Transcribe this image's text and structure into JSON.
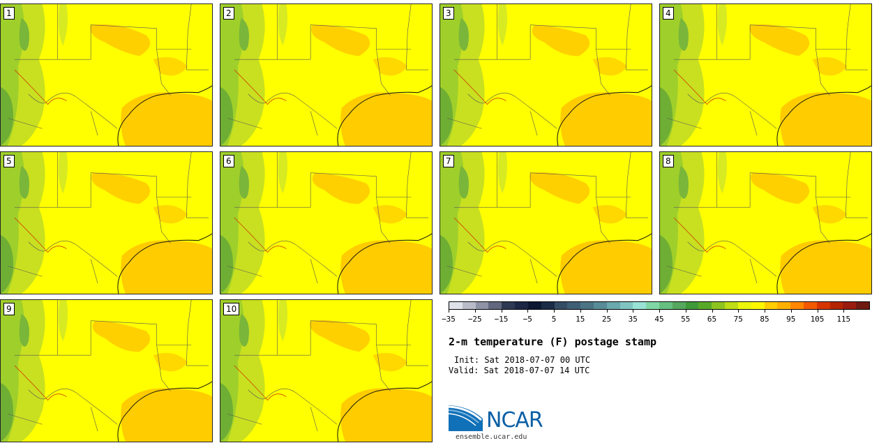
{
  "panels": [
    {
      "label": "1"
    },
    {
      "label": "2"
    },
    {
      "label": "3"
    },
    {
      "label": "4"
    },
    {
      "label": "5"
    },
    {
      "label": "6"
    },
    {
      "label": "7"
    },
    {
      "label": "8"
    },
    {
      "label": "9"
    },
    {
      "label": "10"
    }
  ],
  "colorbar": {
    "colors": [
      "#dfe1ea",
      "#b9bcc8",
      "#8e93a6",
      "#62687f",
      "#2d3852",
      "#1b2744",
      "#0c1832",
      "#1b2c47",
      "#354d64",
      "#3f5f77",
      "#4b7585",
      "#588c97",
      "#6aa9ad",
      "#80c5c2",
      "#98e3d6",
      "#80d7a6",
      "#66c080",
      "#55a85d",
      "#3f9a39",
      "#5aaa2a",
      "#8ec420",
      "#bedd14",
      "#ecf60b",
      "#fff700",
      "#ffcd00",
      "#ffb000",
      "#ff8800",
      "#f35a00",
      "#d73500",
      "#b52500",
      "#9a1c0e",
      "#6e1a10"
    ],
    "tick_labels": [
      "−35",
      "−25",
      "−15",
      "−5",
      "5",
      "15",
      "25",
      "35",
      "45",
      "55",
      "65",
      "75",
      "85",
      "95",
      "105",
      "115"
    ]
  },
  "title": "2-m temperature (F) postage stamp",
  "init": "Init: Sat 2018-07-07 00 UTC",
  "valid": "Valid: Sat 2018-07-07 14 UTC",
  "logo": {
    "text": "NCAR",
    "url": "ensemble.ucar.edu",
    "icon": "ncar-logo-icon"
  }
}
